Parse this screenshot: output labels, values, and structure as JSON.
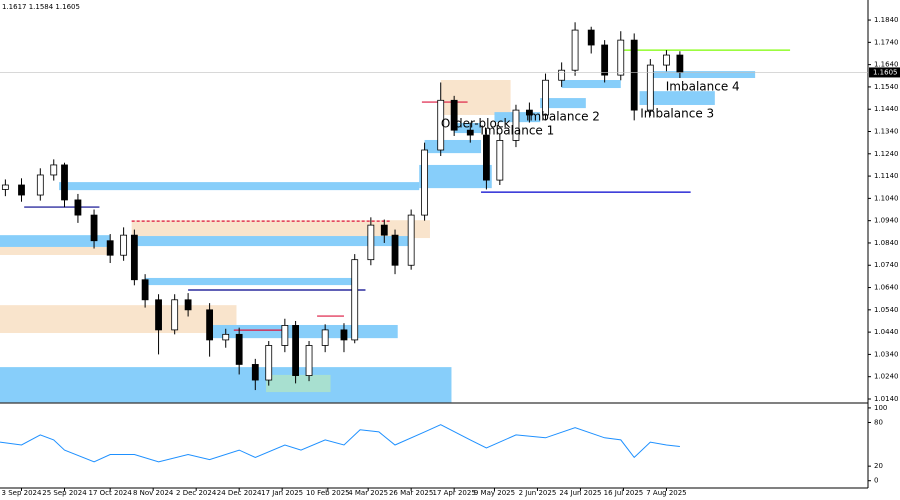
{
  "chart_data": [
    {
      "type": "candlestick",
      "ohlc_text": "1.1617 1.1584 1.1605",
      "current_price": 1.1605,
      "xlim": [
        -8,
        315
      ],
      "ylim": [
        1.0122,
        1.1921
      ],
      "yticks": [
        {
          "value": 1.014,
          "label": "1.0140"
        },
        {
          "value": 1.024,
          "label": "1.0240"
        },
        {
          "value": 1.034,
          "label": "1.0340"
        },
        {
          "value": 1.044,
          "label": "1.0440"
        },
        {
          "value": 1.054,
          "label": "1.0540"
        },
        {
          "value": 1.064,
          "label": "1.0640"
        },
        {
          "value": 1.074,
          "label": "1.0740"
        },
        {
          "value": 1.084,
          "label": "1.0840"
        },
        {
          "value": 1.094,
          "label": "1.0940"
        },
        {
          "value": 1.104,
          "label": "1.1040"
        },
        {
          "value": 1.114,
          "label": "1.1140"
        },
        {
          "value": 1.124,
          "label": "1.1240"
        },
        {
          "value": 1.134,
          "label": "1.1340"
        },
        {
          "value": 1.144,
          "label": "1.1440"
        },
        {
          "value": 1.154,
          "label": "1.1540"
        },
        {
          "value": 1.164,
          "label": "1.1640"
        },
        {
          "value": 1.174,
          "label": "1.1740"
        },
        {
          "value": 1.184,
          "label": "1.1840"
        }
      ],
      "x": [
        -6,
        0,
        7,
        12,
        16,
        21,
        27,
        33,
        38,
        42,
        46,
        51,
        57,
        62,
        70,
        76,
        81,
        87,
        92,
        98,
        102,
        107,
        113,
        120,
        124,
        130,
        135,
        139,
        145,
        150,
        156,
        161,
        167,
        173,
        178,
        184,
        189,
        195,
        201,
        206,
        212,
        217,
        223,
        228,
        234,
        240,
        245
      ],
      "open": [
        1.108,
        1.11,
        1.1055,
        1.1145,
        1.119,
        1.1033,
        1.0965,
        1.085,
        1.0785,
        1.0875,
        1.0675,
        1.0585,
        1.045,
        1.0585,
        1.054,
        1.0405,
        1.043,
        1.0295,
        1.0225,
        1.038,
        1.047,
        1.0245,
        1.038,
        1.045,
        1.0405,
        1.0765,
        1.092,
        1.0875,
        1.074,
        1.0965,
        1.1257,
        1.148,
        1.1346,
        1.1324,
        1.1122,
        1.13,
        1.1436,
        1.1414,
        1.157,
        1.1615,
        1.1795,
        1.1728,
        1.1593,
        1.175,
        1.1436,
        1.1638,
        1.1683
      ],
      "high": [
        1.1125,
        1.113,
        1.1175,
        1.1215,
        1.12,
        1.106,
        1.099,
        1.088,
        1.091,
        1.09,
        1.07,
        1.061,
        1.061,
        1.0615,
        1.057,
        1.0455,
        1.046,
        1.032,
        1.04,
        1.05,
        1.049,
        1.04,
        1.0475,
        1.048,
        1.079,
        1.0955,
        1.0945,
        1.09,
        1.099,
        1.129,
        1.156,
        1.15,
        1.138,
        1.135,
        1.133,
        1.146,
        1.147,
        1.16,
        1.165,
        1.183,
        1.181,
        1.175,
        1.179,
        1.178,
        1.1665,
        1.1705,
        1.17
      ],
      "low": [
        1.105,
        1.1025,
        1.103,
        1.112,
        1.1,
        1.093,
        1.0815,
        1.075,
        1.076,
        1.065,
        1.055,
        1.034,
        1.043,
        1.051,
        1.033,
        1.037,
        1.025,
        1.018,
        1.02,
        1.035,
        1.021,
        1.022,
        1.035,
        1.035,
        1.039,
        1.074,
        1.084,
        1.07,
        1.072,
        1.094,
        1.123,
        1.132,
        1.129,
        1.108,
        1.11,
        1.127,
        1.138,
        1.139,
        1.154,
        1.159,
        1.169,
        1.156,
        1.157,
        1.139,
        1.141,
        1.161,
        1.158
      ],
      "close": [
        1.11,
        1.1055,
        1.1145,
        1.119,
        1.1033,
        1.0965,
        1.085,
        1.0785,
        1.0875,
        1.0675,
        1.0585,
        1.045,
        1.0585,
        1.054,
        1.0405,
        1.043,
        1.0295,
        1.0225,
        1.038,
        1.047,
        1.0245,
        1.038,
        1.045,
        1.0405,
        1.0765,
        1.092,
        1.0875,
        1.074,
        1.0965,
        1.1257,
        1.148,
        1.1346,
        1.1324,
        1.1122,
        1.13,
        1.1436,
        1.1414,
        1.157,
        1.1615,
        1.1795,
        1.1728,
        1.1593,
        1.175,
        1.1436,
        1.1638,
        1.1683,
        1.1605
      ],
      "zones": [
        {
          "x": [
            -8,
            160
          ],
          "y": [
            1.0125,
            1.0283
          ],
          "color": "#87cefa"
        },
        {
          "x": [
            14,
            148
          ],
          "y": [
            1.1077,
            1.1113
          ],
          "color": "#87cefa"
        },
        {
          "x": [
            -8,
            33
          ],
          "y": [
            1.0822,
            1.0875
          ],
          "color": "#87cefa"
        },
        {
          "x": [
            -8,
            33
          ],
          "y": [
            1.0786,
            1.0822
          ],
          "color": "#f9e4cc"
        },
        {
          "x": [
            41,
            152
          ],
          "y": [
            1.0862,
            1.0942
          ],
          "color": "#f9e4cc"
        },
        {
          "x": [
            41,
            145
          ],
          "y": [
            1.0826,
            1.0871
          ],
          "color": "#87cefa"
        },
        {
          "x": [
            -8,
            80
          ],
          "y": [
            1.0436,
            1.0561
          ],
          "color": "#f9e4cc"
        },
        {
          "x": [
            46,
            123
          ],
          "y": [
            1.0651,
            1.0683
          ],
          "color": "#87cefa"
        },
        {
          "x": [
            70,
            140
          ],
          "y": [
            1.0413,
            1.0472
          ],
          "color": "#87cefa"
        },
        {
          "x": [
            91,
            115
          ],
          "y": [
            1.0171,
            1.0248
          ],
          "color": "#a8e0d0"
        },
        {
          "x": [
            148,
            175
          ],
          "y": [
            1.1086,
            1.119
          ],
          "color": "#87cefa"
        },
        {
          "x": [
            150,
            171
          ],
          "y": [
            1.1243,
            1.1302
          ],
          "color": "#87cefa"
        },
        {
          "x": [
            156,
            182
          ],
          "y": [
            1.1414,
            1.1571
          ],
          "color": "#f9e4cc",
          "label": "Order-block"
        },
        {
          "x": [
            161,
            171
          ],
          "y": [
            1.1333,
            1.1378
          ],
          "color": "#87cefa"
        },
        {
          "x": [
            176,
            193
          ],
          "y": [
            1.1382,
            1.1427
          ],
          "color": "#87cefa",
          "label": "Imbalance 1"
        },
        {
          "x": [
            193,
            210
          ],
          "y": [
            1.1445,
            1.149
          ],
          "color": "#87cefa",
          "label": "Imbalance 2"
        },
        {
          "x": [
            201,
            223
          ],
          "y": [
            1.1535,
            1.1571
          ],
          "color": "#87cefa"
        },
        {
          "x": [
            230,
            258
          ],
          "y": [
            1.1459,
            1.1521
          ],
          "color": "#87cefa",
          "label": "Imbalance 3"
        },
        {
          "x": [
            234,
            273
          ],
          "y": [
            1.158,
            1.1611
          ],
          "color": "#87cefa",
          "label": "Imbalance 4"
        }
      ],
      "levels": [
        {
          "x": [
            223,
            286
          ],
          "y": 1.1705,
          "color": "#7cfc00"
        },
        {
          "x": [
            171,
            249
          ],
          "y": 1.1068,
          "color": "#0000cd"
        },
        {
          "x": [
            149,
            166
          ],
          "y": 1.1472,
          "color": "#dc143c"
        },
        {
          "x": [
            41,
            137
          ],
          "y": 1.0938,
          "color": "#dc143c",
          "style": "dashed"
        },
        {
          "x": [
            62,
            128
          ],
          "y": 1.0629,
          "color": "#00008b"
        },
        {
          "x": [
            1,
            29
          ],
          "y": 1.1001,
          "color": "#00008b"
        },
        {
          "x": [
            110,
            120
          ],
          "y": 1.0512,
          "color": "#dc143c"
        },
        {
          "x": [
            79,
            98
          ],
          "y": 1.0449,
          "color": "#dc143c"
        }
      ]
    },
    {
      "type": "line",
      "xlim": [
        -8,
        315
      ],
      "ylim": [
        -10,
        104
      ],
      "yticks": [
        0,
        20,
        80,
        100
      ],
      "xticks": [
        {
          "value": 0,
          "label": "3 Sep 2024"
        },
        {
          "value": 16,
          "label": "25 Sep 2024"
        },
        {
          "value": 33,
          "label": "17 Oct 2024"
        },
        {
          "value": 49,
          "label": "8 Nov 2024"
        },
        {
          "value": 65,
          "label": "2 Dec 2024"
        },
        {
          "value": 81,
          "label": "24 Dec 2024"
        },
        {
          "value": 97,
          "label": "17 Jan 2025"
        },
        {
          "value": 114,
          "label": "10 Feb 2025"
        },
        {
          "value": 129,
          "label": "4 Mar 2025"
        },
        {
          "value": 145,
          "label": "26 Mar 2025"
        },
        {
          "value": 161,
          "label": "17 Apr 2025"
        },
        {
          "value": 176,
          "label": "9 May 2025"
        },
        {
          "value": 192,
          "label": "2 Jun 2025"
        },
        {
          "value": 208,
          "label": "24 Jun 2025"
        },
        {
          "value": 224,
          "label": "16 Jul 2025"
        },
        {
          "value": 240,
          "label": "7 Aug 2025"
        }
      ],
      "x": [
        -8,
        0,
        7,
        12,
        16,
        27,
        33,
        42,
        51,
        62,
        70,
        81,
        87,
        98,
        104,
        113,
        120,
        126,
        133,
        139,
        150,
        156,
        167,
        173,
        184,
        195,
        206,
        217,
        223,
        228,
        234,
        240,
        245
      ],
      "values": [
        53,
        49,
        63,
        56,
        42,
        26,
        36,
        36,
        26,
        36,
        29,
        42,
        32,
        49,
        42,
        56,
        49,
        70,
        67,
        49,
        67,
        77,
        56,
        45,
        63,
        59,
        73,
        59,
        56,
        32,
        53,
        49,
        47
      ],
      "color": "#1e90ff"
    }
  ]
}
